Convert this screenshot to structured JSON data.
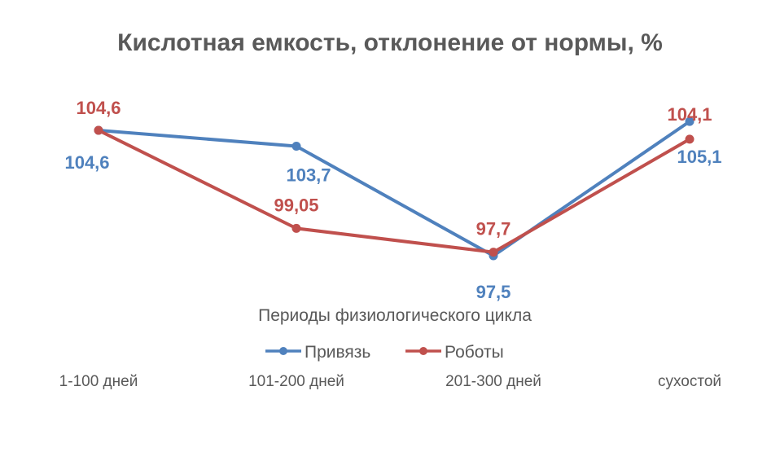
{
  "chart_data": {
    "type": "line",
    "title": "Кислотная емкость, отклонение от нормы, %",
    "xlabel": "Периоды физиологического цикла",
    "ylabel": "",
    "categories": [
      "1-100 дней",
      "101-200 дней",
      "201-300 дней",
      "сухостой"
    ],
    "ylim": [
      96,
      106
    ],
    "grid": false,
    "legend_position": "bottom",
    "series": [
      {
        "name": "Привязь",
        "color": "#4F81BD",
        "values": [
          104.6,
          103.7,
          97.5,
          105.1
        ],
        "labels": [
          "104,6",
          "103,7",
          "97,5",
          "105,1"
        ]
      },
      {
        "name": "Роботы",
        "color": "#C0504D",
        "values": [
          104.6,
          99.05,
          97.7,
          104.1
        ],
        "labels": [
          "104,6",
          "99,05",
          "97,7",
          "104,1"
        ]
      }
    ]
  }
}
